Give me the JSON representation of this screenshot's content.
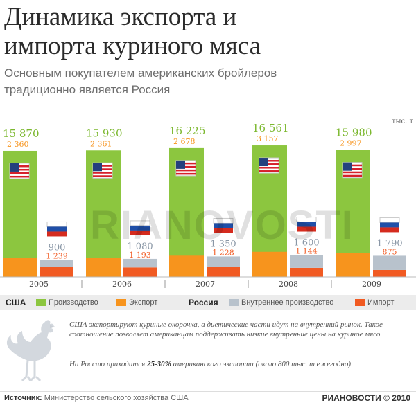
{
  "title_line1": "Динамика экспорта и",
  "title_line2": "импорта куриного мяса",
  "subtitle_line1": "Основным покупателем американских бройлеров",
  "subtitle_line2": "традиционно является Россия",
  "unit": "тыс. т",
  "colors": {
    "production": "#8cc63f",
    "export": "#f7941d",
    "russia_internal": "#b8c2cc",
    "import": "#f15a22",
    "us_value": "#7cb82f",
    "export_value": "#f7941d",
    "ru_value": "#8a97a6",
    "import_value": "#f15a22"
  },
  "chart_data": {
    "type": "bar",
    "title": "Динамика экспорта и импорта куриного мяса",
    "unit": "тыс. т",
    "categories": [
      "2005",
      "2006",
      "2007",
      "2008",
      "2009"
    ],
    "series": [
      {
        "name": "США — Производство",
        "values": [
          15870,
          15930,
          16225,
          16561,
          15980
        ]
      },
      {
        "name": "США — Экспорт",
        "values": [
          2360,
          2361,
          2678,
          3157,
          2997
        ]
      },
      {
        "name": "Россия — Внутреннее производство",
        "values": [
          900,
          1080,
          1350,
          1600,
          1790
        ]
      },
      {
        "name": "Россия — Импорт",
        "values": [
          1239,
          1193,
          1228,
          1144,
          875
        ]
      }
    ],
    "labels": {
      "production": [
        "15 870",
        "15 930",
        "16 225",
        "16 561",
        "15 980"
      ],
      "export": [
        "2 360",
        "2 361",
        "2 678",
        "3 157",
        "2 997"
      ],
      "internal": [
        "900",
        "1 080",
        "1 350",
        "1 600",
        "1 790"
      ],
      "import": [
        "1 239",
        "1 193",
        "1 228",
        "1 144",
        "875"
      ]
    }
  },
  "legend": {
    "usa": "США",
    "production": "Производство",
    "export": "Экспорт",
    "russia": "Россия",
    "internal": "Внутреннее производство",
    "import": "Импорт"
  },
  "note1": "США экспортируют куриные окорочка, а диетические части идут на внутренний рынок. Такое соотношение позволяет американцам поддерживать низкие внутренние цены на куриное мясо",
  "note2_prefix": "На Россию приходится ",
  "note2_bold": "25-30%",
  "note2_suffix": " американского экспорта (около 800 тыс. т ежегодно)",
  "source_label": "Источник:",
  "source_text": " Министерство сельского хозяйства США",
  "brand": "РИАНОВОСТИ © 2010",
  "watermark": "RIANOVOSTI"
}
